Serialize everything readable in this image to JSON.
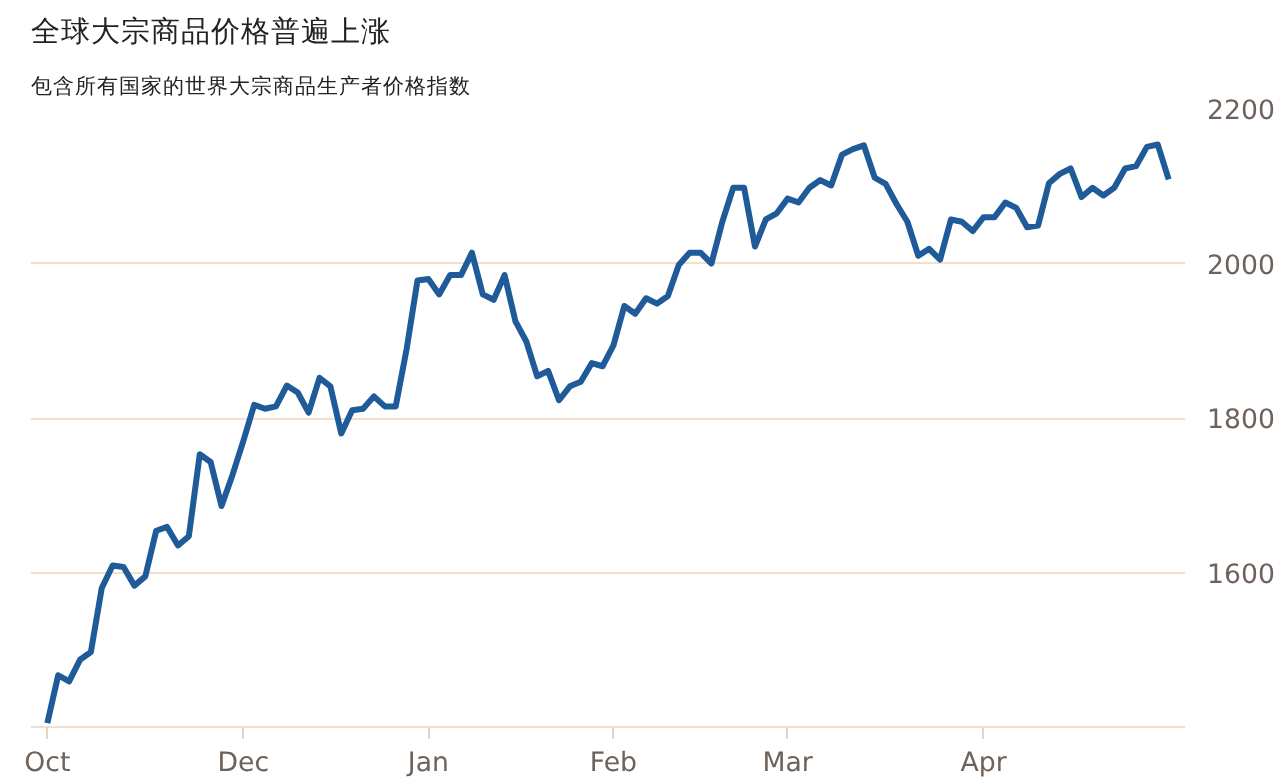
{
  "chart_data": {
    "type": "line",
    "title": "全球大宗商品价格普遍上涨",
    "subtitle": "包含所有国家的世界大宗商品生产者价格指数",
    "categories": [
      "Oct",
      null,
      null,
      null,
      null,
      null,
      null,
      null,
      null,
      null,
      null,
      null,
      null,
      null,
      null,
      null,
      null,
      null,
      "Dec",
      null,
      null,
      null,
      null,
      null,
      null,
      null,
      null,
      null,
      null,
      null,
      null,
      null,
      null,
      null,
      null,
      "Jan",
      null,
      null,
      null,
      null,
      null,
      null,
      null,
      null,
      null,
      null,
      null,
      null,
      null,
      null,
      null,
      null,
      "Feb",
      null,
      null,
      null,
      null,
      null,
      null,
      null,
      null,
      null,
      null,
      null,
      null,
      null,
      null,
      null,
      "Mar",
      null,
      null,
      null,
      null,
      null,
      null,
      null,
      null,
      null,
      null,
      null,
      null,
      null,
      null,
      null,
      null,
      null,
      "Apr",
      null,
      null,
      null,
      null,
      null,
      null,
      null,
      null,
      null,
      null,
      null,
      null,
      null,
      null,
      null,
      null,
      null
    ],
    "series": [
      {
        "color": "#1f5a99",
        "values": [
          1405,
          1467,
          1459,
          1487,
          1497,
          1580,
          1609,
          1607,
          1583,
          1595,
          1654,
          1659,
          1635,
          1647,
          1753,
          1743,
          1686,
          1726,
          1770,
          1817,
          1812,
          1815,
          1842,
          1833,
          1807,
          1852,
          1841,
          1780,
          1810,
          1812,
          1828,
          1815,
          1815,
          1889,
          1978,
          1980,
          1960,
          1985,
          1985,
          2014,
          1960,
          1953,
          1985,
          1925,
          1899,
          1854,
          1861,
          1823,
          1841,
          1847,
          1871,
          1867,
          1894,
          1945,
          1935,
          1955,
          1948,
          1958,
          1998,
          2014,
          2014,
          2000,
          2054,
          2098,
          2098,
          2022,
          2057,
          2065,
          2084,
          2079,
          2098,
          2108,
          2101,
          2141,
          2148,
          2153,
          2111,
          2103,
          2077,
          2054,
          2010,
          2019,
          2005,
          2057,
          2054,
          2042,
          2060,
          2060,
          2079,
          2072,
          2047,
          2049,
          2104,
          2116,
          2123,
          2086,
          2098,
          2088,
          2098,
          2123,
          2126,
          2151,
          2154,
          2109
        ]
      }
    ],
    "ylim": [
      1400,
      2200
    ],
    "yticks": [
      {
        "value": 1400,
        "label": null
      },
      1600,
      1800,
      2000,
      2200
    ],
    "grid": "y",
    "marker": "none",
    "line_style": "solid"
  }
}
